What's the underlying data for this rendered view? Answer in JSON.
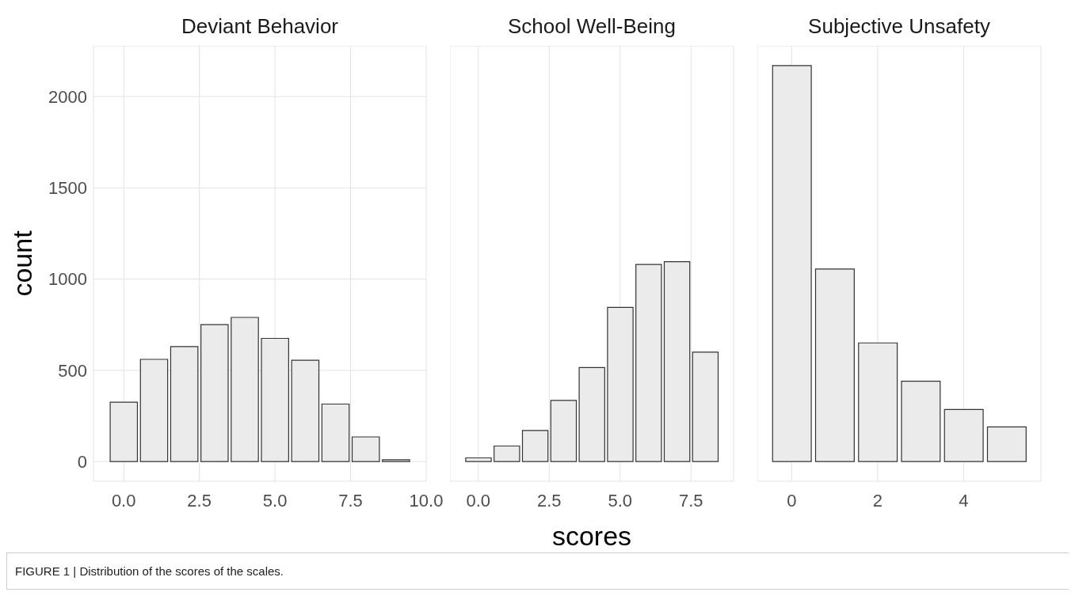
{
  "chart_data": [
    {
      "type": "histogram",
      "title": "Deviant Behavior",
      "ylabel": "count",
      "bins": [
        -0.5,
        0.5,
        1.5,
        2.5,
        3.5,
        4.5,
        5.5,
        6.5,
        7.5,
        8.5,
        9.5
      ],
      "values": [
        325,
        560,
        630,
        750,
        790,
        675,
        555,
        315,
        135,
        10
      ],
      "color": "#ebebeb",
      "xlim": [
        -1,
        10
      ],
      "xticks": [
        {
          "value": 0,
          "label": "0.0"
        },
        2.5,
        {
          "value": 5,
          "label": "5.0"
        },
        7.5,
        {
          "value": 10,
          "label": "10.0"
        }
      ],
      "ylim": [
        -108,
        2278
      ],
      "yticks": [
        0,
        500,
        1000,
        1500,
        2000
      ],
      "grid": true,
      "annotations": [
        "FIGURE 1 | Distribution of the scores of the scales."
      ]
    },
    {
      "type": "histogram",
      "title": "School Well-Being",
      "xlabel": "scores",
      "bins": [
        -0.5,
        0.5,
        1.5,
        2.5,
        3.5,
        4.5,
        5.5,
        6.5,
        7.5,
        8.5
      ],
      "values": [
        20,
        85,
        170,
        335,
        515,
        845,
        1080,
        1095,
        600
      ],
      "color": "#ebebeb",
      "xlim": [
        -1,
        9
      ],
      "xticks": [
        {
          "value": 0,
          "label": "0.0"
        },
        2.5,
        {
          "value": 5,
          "label": "5.0"
        },
        7.5
      ],
      "ylim": [
        -108,
        2278
      ],
      "yticks": [
        0,
        500,
        1000,
        1500,
        2000
      ],
      "grid": true,
      "tick_labels": "x"
    },
    {
      "type": "histogram",
      "title": "Subjective Unsafety",
      "bins": [
        -0.5,
        0.5,
        1.5,
        2.5,
        3.5,
        4.5,
        5.5
      ],
      "values": [
        2170,
        1055,
        650,
        440,
        285,
        190
      ],
      "color": "#ebebeb",
      "xlim": [
        -0.8,
        5.8
      ],
      "xticks": [
        0,
        2,
        4
      ],
      "ylim": [
        -108,
        2278
      ],
      "yticks": [
        0,
        500,
        1000,
        1500,
        2000
      ],
      "grid": true,
      "tick_labels": "x"
    }
  ]
}
